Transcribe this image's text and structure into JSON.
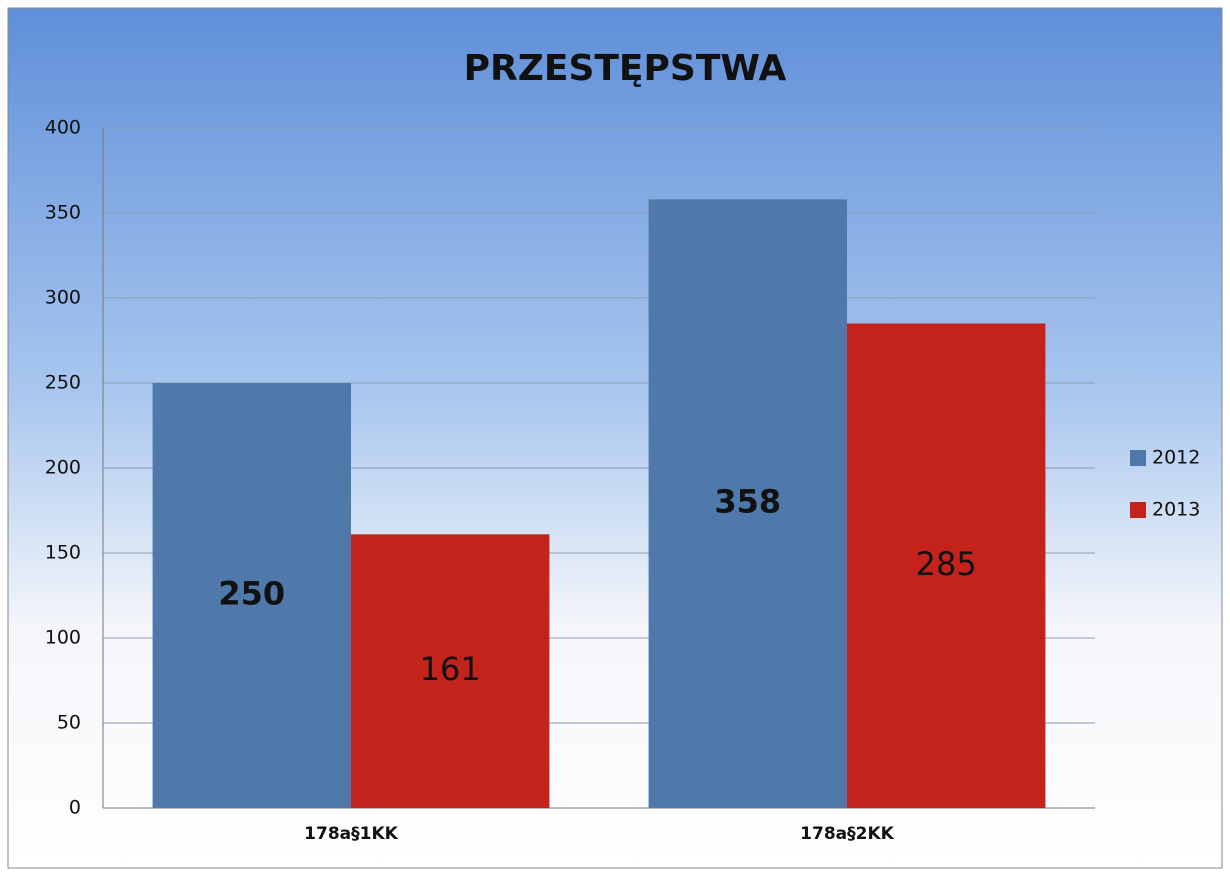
{
  "chart_data": {
    "type": "bar",
    "title": "PRZESTĘPSTWA",
    "categories": [
      "178a§1KK",
      "178a§2KK"
    ],
    "series": [
      {
        "name": "2012",
        "color": "#4f78ab",
        "values": [
          250,
          358
        ]
      },
      {
        "name": "2013",
        "color": "#c3231b",
        "values": [
          161,
          285
        ]
      }
    ],
    "ylim": [
      0,
      400
    ],
    "yticks": [
      0,
      50,
      100,
      150,
      200,
      250,
      300,
      350,
      400
    ],
    "grid": true,
    "legend": "right"
  }
}
